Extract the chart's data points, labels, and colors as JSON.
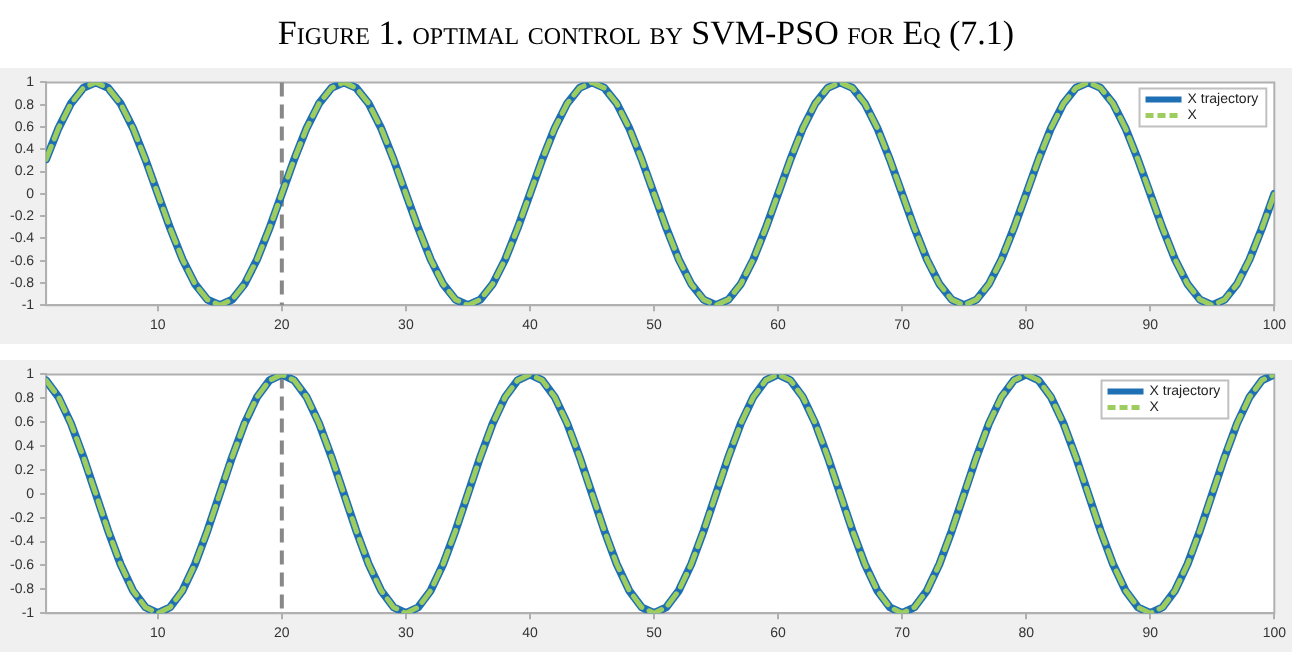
{
  "chart_data": [
    {
      "type": "line",
      "title": "Figure 1. optimal control by SVM-PSO for Eq (7.1)",
      "x": [
        1,
        2,
        3,
        4,
        5,
        6,
        7,
        8,
        9,
        10,
        11,
        12,
        13,
        14,
        15,
        16,
        17,
        18,
        19,
        20,
        21,
        22,
        23,
        24,
        25,
        26,
        27,
        28,
        29,
        30,
        31,
        32,
        33,
        34,
        35,
        36,
        37,
        38,
        39,
        40,
        41,
        42,
        43,
        44,
        45,
        46,
        47,
        48,
        49,
        50,
        51,
        52,
        53,
        54,
        55,
        56,
        57,
        58,
        59,
        60,
        61,
        62,
        63,
        64,
        65,
        66,
        67,
        68,
        69,
        70,
        71,
        72,
        73,
        74,
        75,
        76,
        77,
        78,
        79,
        80,
        81,
        82,
        83,
        84,
        85,
        86,
        87,
        88,
        89,
        90,
        91,
        92,
        93,
        94,
        95,
        96,
        97,
        98,
        99,
        100
      ],
      "series": [
        {
          "name": "X trajectory",
          "color": "#1f6fb4",
          "line_style": "solid",
          "values": [
            0.31,
            0.59,
            0.81,
            0.95,
            1,
            0.95,
            0.81,
            0.59,
            0.31,
            0,
            -0.31,
            -0.59,
            -0.81,
            -0.95,
            -1,
            -0.95,
            -0.81,
            -0.59,
            -0.31,
            0,
            0.31,
            0.59,
            0.81,
            0.95,
            1,
            0.95,
            0.81,
            0.59,
            0.31,
            0,
            -0.31,
            -0.59,
            -0.81,
            -0.95,
            -1,
            -0.95,
            -0.81,
            -0.59,
            -0.31,
            0,
            0.31,
            0.59,
            0.81,
            0.95,
            1,
            0.95,
            0.81,
            0.59,
            0.31,
            0,
            -0.31,
            -0.59,
            -0.81,
            -0.95,
            -1,
            -0.95,
            -0.81,
            -0.59,
            -0.31,
            0,
            0.31,
            0.59,
            0.81,
            0.95,
            1,
            0.95,
            0.81,
            0.59,
            0.31,
            0,
            -0.31,
            -0.59,
            -0.81,
            -0.95,
            -1,
            -0.95,
            -0.81,
            -0.59,
            -0.31,
            0,
            0.31,
            0.59,
            0.81,
            0.95,
            1,
            0.95,
            0.81,
            0.59,
            0.31,
            0,
            -0.31,
            -0.59,
            -0.81,
            -0.95,
            -1,
            -0.95,
            -0.81,
            -0.59,
            -0.31,
            0
          ]
        },
        {
          "name": "X",
          "color": "#9dcc5f",
          "line_style": "dashed",
          "values": [
            0.31,
            0.59,
            0.81,
            0.95,
            1,
            0.95,
            0.81,
            0.59,
            0.31,
            0,
            -0.31,
            -0.59,
            -0.81,
            -0.95,
            -1,
            -0.95,
            -0.81,
            -0.59,
            -0.31,
            0,
            0.31,
            0.59,
            0.81,
            0.95,
            1,
            0.95,
            0.81,
            0.59,
            0.31,
            0,
            -0.31,
            -0.59,
            -0.81,
            -0.95,
            -1,
            -0.95,
            -0.81,
            -0.59,
            -0.31,
            0,
            0.31,
            0.59,
            0.81,
            0.95,
            1,
            0.95,
            0.81,
            0.59,
            0.31,
            0,
            -0.31,
            -0.59,
            -0.81,
            -0.95,
            -1,
            -0.95,
            -0.81,
            -0.59,
            -0.31,
            0,
            0.31,
            0.59,
            0.81,
            0.95,
            1,
            0.95,
            0.81,
            0.59,
            0.31,
            0,
            -0.31,
            -0.59,
            -0.81,
            -0.95,
            -1,
            -0.95,
            -0.81,
            -0.59,
            -0.31,
            0,
            0.31,
            0.59,
            0.81,
            0.95,
            1,
            0.95,
            0.81,
            0.59,
            0.31,
            0,
            -0.31,
            -0.59,
            -0.81,
            -0.95,
            -1,
            -0.95,
            -0.81,
            -0.59,
            -0.31,
            0
          ]
        }
      ],
      "xlim": [
        1,
        100
      ],
      "xticks": [
        10,
        20,
        30,
        40,
        50,
        60,
        70,
        80,
        90,
        100
      ],
      "ylim": [
        -1,
        1
      ],
      "yticks": [
        -1,
        -0.8,
        -0.6,
        -0.4,
        -0.2,
        0,
        0.2,
        0.4,
        0.6,
        0.8,
        1
      ],
      "ref_lines": [
        {
          "axis": "x",
          "value": 20,
          "color": "#888888",
          "line_style": "dashed"
        }
      ],
      "legend": "top right",
      "grid": false,
      "marker": "none"
    },
    {
      "type": "line",
      "x": [
        1,
        2,
        3,
        4,
        5,
        6,
        7,
        8,
        9,
        10,
        11,
        12,
        13,
        14,
        15,
        16,
        17,
        18,
        19,
        20,
        21,
        22,
        23,
        24,
        25,
        26,
        27,
        28,
        29,
        30,
        31,
        32,
        33,
        34,
        35,
        36,
        37,
        38,
        39,
        40,
        41,
        42,
        43,
        44,
        45,
        46,
        47,
        48,
        49,
        50,
        51,
        52,
        53,
        54,
        55,
        56,
        57,
        58,
        59,
        60,
        61,
        62,
        63,
        64,
        65,
        66,
        67,
        68,
        69,
        70,
        71,
        72,
        73,
        74,
        75,
        76,
        77,
        78,
        79,
        80,
        81,
        82,
        83,
        84,
        85,
        86,
        87,
        88,
        89,
        90,
        91,
        92,
        93,
        94,
        95,
        96,
        97,
        98,
        99,
        100
      ],
      "series": [
        {
          "name": "X trajectory",
          "color": "#1f6fb4",
          "line_style": "solid",
          "values": [
            0.95,
            0.81,
            0.59,
            0.31,
            0,
            -0.31,
            -0.59,
            -0.81,
            -0.95,
            -1,
            -0.95,
            -0.81,
            -0.59,
            -0.31,
            0,
            0.31,
            0.59,
            0.81,
            0.95,
            1,
            0.95,
            0.81,
            0.59,
            0.31,
            0,
            -0.31,
            -0.59,
            -0.81,
            -0.95,
            -1,
            -0.95,
            -0.81,
            -0.59,
            -0.31,
            0,
            0.31,
            0.59,
            0.81,
            0.95,
            1,
            0.95,
            0.81,
            0.59,
            0.31,
            0,
            -0.31,
            -0.59,
            -0.81,
            -0.95,
            -1,
            -0.95,
            -0.81,
            -0.59,
            -0.31,
            0,
            0.31,
            0.59,
            0.81,
            0.95,
            1,
            0.95,
            0.81,
            0.59,
            0.31,
            0,
            -0.31,
            -0.59,
            -0.81,
            -0.95,
            -1,
            -0.95,
            -0.81,
            -0.59,
            -0.31,
            0,
            0.31,
            0.59,
            0.81,
            0.95,
            1,
            0.95,
            0.81,
            0.59,
            0.31,
            0,
            -0.31,
            -0.59,
            -0.81,
            -0.95,
            -1,
            -0.95,
            -0.81,
            -0.59,
            -0.31,
            0,
            0.31,
            0.59,
            0.81,
            0.95,
            1
          ]
        },
        {
          "name": "X",
          "color": "#9dcc5f",
          "line_style": "dashed",
          "values": [
            0.95,
            0.81,
            0.59,
            0.31,
            0,
            -0.31,
            -0.59,
            -0.81,
            -0.95,
            -1,
            -0.95,
            -0.81,
            -0.59,
            -0.31,
            0,
            0.31,
            0.59,
            0.81,
            0.95,
            1,
            0.95,
            0.81,
            0.59,
            0.31,
            0,
            -0.31,
            -0.59,
            -0.81,
            -0.95,
            -1,
            -0.95,
            -0.81,
            -0.59,
            -0.31,
            0,
            0.31,
            0.59,
            0.81,
            0.95,
            1,
            0.95,
            0.81,
            0.59,
            0.31,
            0,
            -0.31,
            -0.59,
            -0.81,
            -0.95,
            -1,
            -0.95,
            -0.81,
            -0.59,
            -0.31,
            0,
            0.31,
            0.59,
            0.81,
            0.95,
            1,
            0.95,
            0.81,
            0.59,
            0.31,
            0,
            -0.31,
            -0.59,
            -0.81,
            -0.95,
            -1,
            -0.95,
            -0.81,
            -0.59,
            -0.31,
            0,
            0.31,
            0.59,
            0.81,
            0.95,
            1,
            0.95,
            0.81,
            0.59,
            0.31,
            0,
            -0.31,
            -0.59,
            -0.81,
            -0.95,
            -1,
            -0.95,
            -0.81,
            -0.59,
            -0.31,
            0,
            0.31,
            0.59,
            0.81,
            0.95,
            1
          ]
        }
      ],
      "xlim": [
        1,
        100
      ],
      "xticks": [
        10,
        20,
        30,
        40,
        50,
        60,
        70,
        80,
        90,
        100
      ],
      "ylim": [
        -1,
        1
      ],
      "yticks": [
        -1,
        -0.8,
        -0.6,
        -0.4,
        -0.2,
        0,
        0.2,
        0.4,
        0.6,
        0.8,
        1
      ],
      "ref_lines": [
        {
          "axis": "x",
          "value": 20,
          "color": "#888888",
          "line_style": "dashed"
        }
      ],
      "legend": "top right",
      "grid": false,
      "marker": "none"
    }
  ]
}
